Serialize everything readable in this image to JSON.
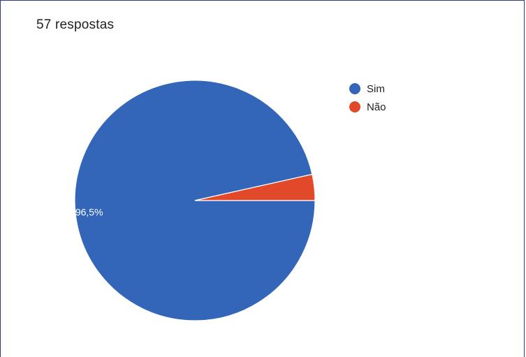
{
  "response_count": "57 respostas",
  "colors": {
    "sim": "#3366b8",
    "nao": "#e2492a"
  },
  "chart_data": {
    "type": "pie",
    "categories": [
      "Sim",
      "Não"
    ],
    "values": [
      96.5,
      3.5
    ],
    "data_labels": [
      "96,5%",
      ""
    ],
    "legend": "right",
    "series": [
      {
        "name": "Sim",
        "value": 96.5,
        "color": "#3366b8"
      },
      {
        "name": "Não",
        "value": 3.5,
        "color": "#e2492a"
      }
    ]
  }
}
